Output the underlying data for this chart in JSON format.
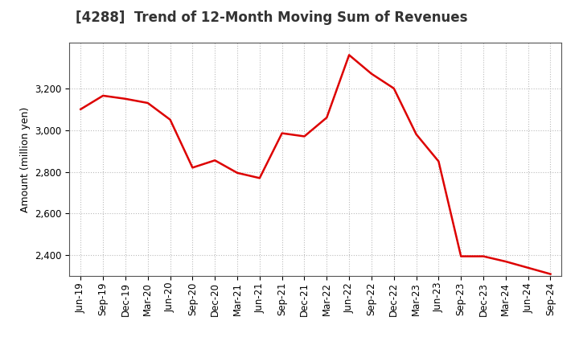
{
  "title": "[4288]  Trend of 12-Month Moving Sum of Revenues",
  "ylabel": "Amount (million yen)",
  "line_color": "#dd0000",
  "background_color": "#ffffff",
  "plot_bg_color": "#ffffff",
  "grid_color": "#bbbbbb",
  "ylim": [
    2300,
    3420
  ],
  "yticks": [
    2400,
    2600,
    2800,
    3000,
    3200
  ],
  "x_labels": [
    "Jun-19",
    "Sep-19",
    "Dec-19",
    "Mar-20",
    "Jun-20",
    "Sep-20",
    "Dec-20",
    "Mar-21",
    "Jun-21",
    "Sep-21",
    "Dec-21",
    "Mar-22",
    "Jun-22",
    "Sep-22",
    "Dec-22",
    "Mar-23",
    "Jun-23",
    "Sep-23",
    "Dec-23",
    "Mar-24",
    "Jun-24",
    "Sep-24"
  ],
  "values": [
    3100,
    3165,
    3150,
    3130,
    3050,
    2820,
    2855,
    2795,
    2770,
    2985,
    2970,
    3060,
    3360,
    3270,
    3200,
    2980,
    2850,
    2395,
    2395,
    2370,
    2340,
    2310
  ],
  "title_fontsize": 12,
  "label_fontsize": 9,
  "tick_fontsize": 8.5,
  "title_color": "#333333"
}
